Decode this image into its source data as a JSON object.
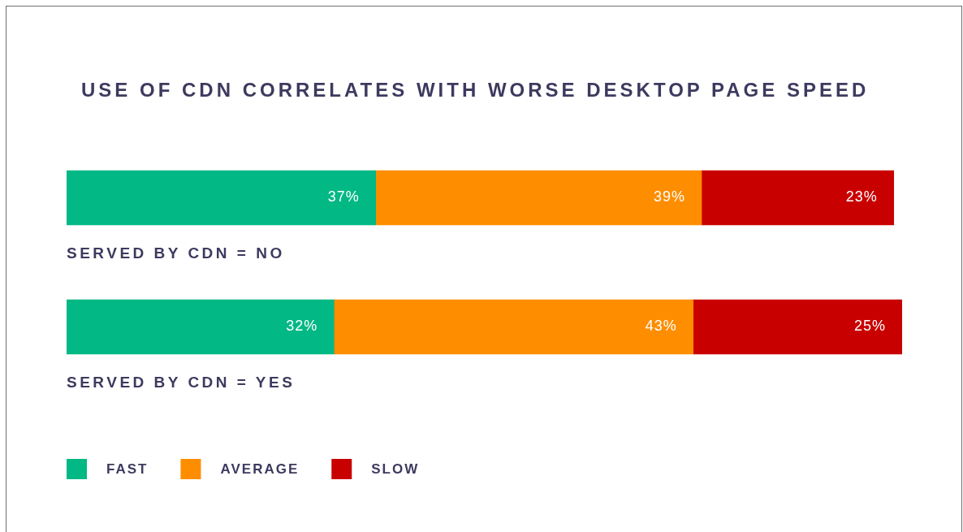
{
  "chart_data": {
    "type": "bar",
    "orientation": "horizontal",
    "stacked": true,
    "title": "USE OF CDN CORRELATES WITH WORSE DESKTOP PAGE SPEED",
    "categories": [
      "SERVED BY CDN = NO",
      "SERVED BY CDN = YES"
    ],
    "series": [
      {
        "name": "FAST",
        "color": "#02b884",
        "values": [
          37,
          32
        ],
        "value_labels": [
          "37%",
          "32%"
        ]
      },
      {
        "name": "AVERAGE",
        "color": "#fe8d00",
        "values": [
          39,
          43
        ],
        "value_labels": [
          "39%",
          "43%"
        ]
      },
      {
        "name": "SLOW",
        "color": "#c90000",
        "values": [
          23,
          25
        ],
        "value_labels": [
          "23%",
          "25%"
        ]
      }
    ],
    "tick_labels": "y",
    "legend": "bottom left"
  }
}
